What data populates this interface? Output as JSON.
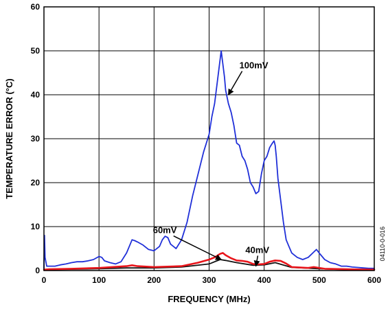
{
  "chart_data": {
    "type": "line",
    "xlabel": "FREQUENCY (MHz)",
    "ylabel": "TEMPERATURE ERROR (°C)",
    "xlim": [
      0,
      600
    ],
    "ylim": [
      0,
      60
    ],
    "xticks": [
      0,
      100,
      200,
      300,
      400,
      500,
      600
    ],
    "yticks": [
      0,
      10,
      20,
      30,
      40,
      50,
      60
    ],
    "grid": true,
    "figure_id": "04110-0-016",
    "series": [
      {
        "name": "100mV",
        "color": "#1f2fd8",
        "x": [
          0,
          1,
          2,
          5,
          10,
          20,
          30,
          40,
          50,
          60,
          70,
          80,
          90,
          100,
          105,
          110,
          120,
          130,
          140,
          150,
          155,
          160,
          165,
          170,
          180,
          190,
          200,
          210,
          215,
          220,
          225,
          230,
          240,
          250,
          260,
          270,
          280,
          290,
          300,
          305,
          310,
          315,
          318,
          320,
          322,
          325,
          328,
          330,
          335,
          340,
          345,
          350,
          355,
          360,
          365,
          370,
          375,
          380,
          385,
          390,
          395,
          400,
          405,
          410,
          415,
          418,
          420,
          422,
          425,
          430,
          435,
          440,
          445,
          450,
          460,
          470,
          480,
          490,
          495,
          500,
          510,
          520,
          530,
          540,
          550,
          560,
          570,
          580,
          590,
          600
        ],
        "y": [
          0.5,
          8,
          3,
          1,
          1,
          1,
          1.3,
          1.5,
          1.8,
          2,
          2,
          2.2,
          2.5,
          3.2,
          3,
          2.2,
          1.8,
          1.5,
          2,
          4,
          5.5,
          7,
          6.8,
          6.5,
          5.8,
          4.8,
          4.5,
          5.5,
          7,
          7.8,
          7.5,
          6,
          5,
          7,
          11,
          17,
          22,
          27,
          31,
          35,
          38,
          43,
          46,
          48,
          50,
          47,
          44,
          41,
          38,
          36,
          33,
          29,
          28.5,
          26,
          25,
          23,
          20,
          19,
          17.5,
          18,
          22,
          25,
          26,
          28,
          29,
          29.5,
          28.5,
          26,
          21,
          16,
          11,
          7,
          5.5,
          4,
          3,
          2.5,
          3,
          4.2,
          4.8,
          4,
          2.5,
          1.8,
          1.5,
          1,
          1,
          0.8,
          0.7,
          0.6,
          0.5,
          0.5
        ]
      },
      {
        "name": "60mV",
        "color": "#e8151b",
        "x": [
          0,
          10,
          50,
          100,
          150,
          160,
          170,
          200,
          250,
          280,
          300,
          310,
          320,
          325,
          330,
          340,
          350,
          360,
          370,
          380,
          390,
          400,
          410,
          420,
          430,
          440,
          450,
          480,
          490,
          500,
          510,
          550,
          600
        ],
        "y": [
          0.2,
          0.3,
          0.4,
          0.6,
          1,
          1.2,
          1,
          0.8,
          1,
          1.8,
          2.5,
          3,
          3.8,
          4,
          3.5,
          2.8,
          2.3,
          2.2,
          2,
          1.5,
          1.4,
          1.5,
          2,
          2.3,
          2.2,
          1.6,
          0.8,
          0.6,
          0.8,
          0.6,
          0.4,
          0.3,
          0.2
        ]
      },
      {
        "name": "40mV",
        "color": "#111111",
        "x": [
          0,
          10,
          50,
          100,
          150,
          200,
          250,
          300,
          320,
          330,
          350,
          380,
          400,
          420,
          450,
          500,
          550,
          600
        ],
        "y": [
          0.1,
          0.2,
          0.3,
          0.4,
          0.6,
          0.6,
          0.8,
          1.5,
          2.5,
          2.3,
          1.8,
          1.2,
          1.3,
          1.8,
          0.7,
          0.4,
          0.2,
          0.1
        ]
      }
    ],
    "annotations": [
      {
        "text": "100mV",
        "x": 355,
        "y": 46,
        "arrow_to_x": 335,
        "arrow_to_y": 40
      },
      {
        "text": "60mV",
        "x": 198,
        "y": 8.5,
        "arrow_to_x": 322,
        "arrow_to_y": 2.5
      },
      {
        "text": "40mV",
        "x": 366,
        "y": 4,
        "arrow_to_x": 385,
        "arrow_to_y": 1
      }
    ]
  }
}
